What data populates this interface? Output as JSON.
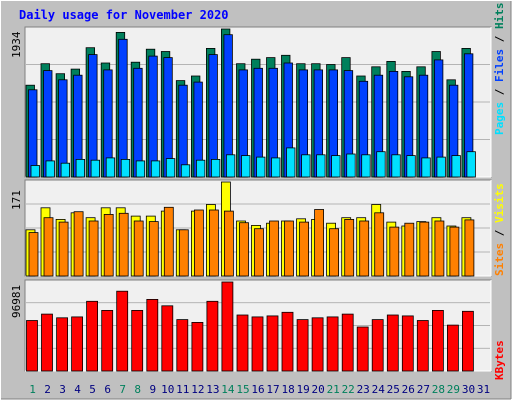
{
  "title": "Daily usage for November 2020",
  "colors": {
    "background": "#c0c0c0",
    "plot_bg": "#f0f0f0",
    "title": "#0000ff",
    "hits": "#00805c",
    "files": "#0040ff",
    "pages": "#00e0ff",
    "visits": "#ffff00",
    "sites": "#ff8000",
    "kbytes": "#ff0000",
    "weekend_day": "#00805c",
    "weekday": "#000080"
  },
  "chart_data": [
    {
      "type": "bar",
      "panel": "hits-files-pages",
      "max_label": "1934",
      "ylim": [
        0,
        1934
      ],
      "categories": [
        "1",
        "2",
        "3",
        "4",
        "5",
        "6",
        "7",
        "8",
        "9",
        "10",
        "11",
        "12",
        "13",
        "14",
        "15",
        "16",
        "17",
        "18",
        "19",
        "20",
        "21",
        "22",
        "23",
        "24",
        "25",
        "26",
        "27",
        "28",
        "29",
        "30",
        "31"
      ],
      "legend": [
        "Pages",
        "Files",
        "Hits"
      ],
      "series": [
        {
          "name": "Hits",
          "values": [
            1200,
            1480,
            1350,
            1410,
            1690,
            1490,
            1890,
            1500,
            1670,
            1640,
            1260,
            1320,
            1680,
            1934,
            1480,
            1540,
            1560,
            1590,
            1480,
            1480,
            1470,
            1560,
            1320,
            1440,
            1510,
            1380,
            1440,
            1640,
            1270,
            1680,
            null
          ]
        },
        {
          "name": "Files",
          "values": [
            1140,
            1390,
            1270,
            1330,
            1600,
            1400,
            1800,
            1420,
            1580,
            1560,
            1200,
            1240,
            1600,
            1860,
            1400,
            1420,
            1420,
            1490,
            1400,
            1400,
            1400,
            1390,
            1250,
            1330,
            1380,
            1310,
            1330,
            1530,
            1200,
            1610,
            null
          ]
        },
        {
          "name": "Pages",
          "values": [
            150,
            210,
            180,
            230,
            220,
            250,
            230,
            210,
            210,
            240,
            160,
            220,
            230,
            290,
            280,
            260,
            250,
            380,
            290,
            290,
            280,
            300,
            290,
            330,
            290,
            280,
            250,
            260,
            280,
            330,
            null
          ]
        }
      ]
    },
    {
      "type": "bar",
      "panel": "visits-sites",
      "max_label": "171",
      "ylim": [
        0,
        171
      ],
      "categories": [
        "1",
        "2",
        "3",
        "4",
        "5",
        "6",
        "7",
        "8",
        "9",
        "10",
        "11",
        "12",
        "13",
        "14",
        "15",
        "16",
        "17",
        "18",
        "19",
        "20",
        "21",
        "22",
        "23",
        "24",
        "25",
        "26",
        "27",
        "28",
        "29",
        "30",
        "31"
      ],
      "legend": [
        "Sites",
        "Visits"
      ],
      "series": [
        {
          "name": "Visits",
          "values": [
            84,
            124,
            103,
            115,
            106,
            124,
            124,
            109,
            109,
            118,
            84,
            118,
            130,
            171,
            100,
            92,
            96,
            100,
            104,
            103,
            96,
            106,
            106,
            130,
            98,
            91,
            99,
            106,
            91,
            106,
            null
          ]
        },
        {
          "name": "Sites",
          "values": [
            79,
            106,
            98,
            117,
            100,
            112,
            114,
            100,
            99,
            125,
            84,
            120,
            120,
            118,
            97,
            86,
            100,
            100,
            98,
            121,
            86,
            103,
            100,
            115,
            89,
            96,
            98,
            100,
            89,
            102,
            null
          ]
        }
      ]
    },
    {
      "type": "bar",
      "panel": "kbytes",
      "max_label": "96981",
      "ylim": [
        0,
        96981
      ],
      "categories": [
        "1",
        "2",
        "3",
        "4",
        "5",
        "6",
        "7",
        "8",
        "9",
        "10",
        "11",
        "12",
        "13",
        "14",
        "15",
        "16",
        "17",
        "18",
        "19",
        "20",
        "21",
        "22",
        "23",
        "24",
        "25",
        "26",
        "27",
        "28",
        "29",
        "30",
        "31"
      ],
      "legend": [
        "KBytes"
      ],
      "series": [
        {
          "name": "KBytes",
          "values": [
            55000,
            62000,
            58000,
            59000,
            76000,
            66000,
            87000,
            66000,
            78000,
            71000,
            56000,
            53000,
            76000,
            96981,
            61000,
            59000,
            60000,
            64000,
            56000,
            58000,
            59000,
            62000,
            48000,
            56000,
            61000,
            60000,
            55000,
            66000,
            50000,
            65000,
            null
          ]
        }
      ]
    }
  ],
  "x_axis_labels": [
    {
      "label": "1",
      "weekend": true
    },
    {
      "label": "2",
      "weekend": false
    },
    {
      "label": "3",
      "weekend": false
    },
    {
      "label": "4",
      "weekend": false
    },
    {
      "label": "5",
      "weekend": false
    },
    {
      "label": "6",
      "weekend": false
    },
    {
      "label": "7",
      "weekend": true
    },
    {
      "label": "8",
      "weekend": true
    },
    {
      "label": "9",
      "weekend": false
    },
    {
      "label": "10",
      "weekend": false
    },
    {
      "label": "11",
      "weekend": false
    },
    {
      "label": "12",
      "weekend": false
    },
    {
      "label": "13",
      "weekend": false
    },
    {
      "label": "14",
      "weekend": true
    },
    {
      "label": "15",
      "weekend": true
    },
    {
      "label": "16",
      "weekend": false
    },
    {
      "label": "17",
      "weekend": false
    },
    {
      "label": "18",
      "weekend": false
    },
    {
      "label": "19",
      "weekend": false
    },
    {
      "label": "20",
      "weekend": false
    },
    {
      "label": "21",
      "weekend": true
    },
    {
      "label": "22",
      "weekend": true
    },
    {
      "label": "23",
      "weekend": false
    },
    {
      "label": "24",
      "weekend": false
    },
    {
      "label": "25",
      "weekend": false
    },
    {
      "label": "26",
      "weekend": false
    },
    {
      "label": "27",
      "weekend": false
    },
    {
      "label": "28",
      "weekend": true
    },
    {
      "label": "29",
      "weekend": true
    },
    {
      "label": "30",
      "weekend": false
    },
    {
      "label": "31",
      "weekend": false
    }
  ]
}
